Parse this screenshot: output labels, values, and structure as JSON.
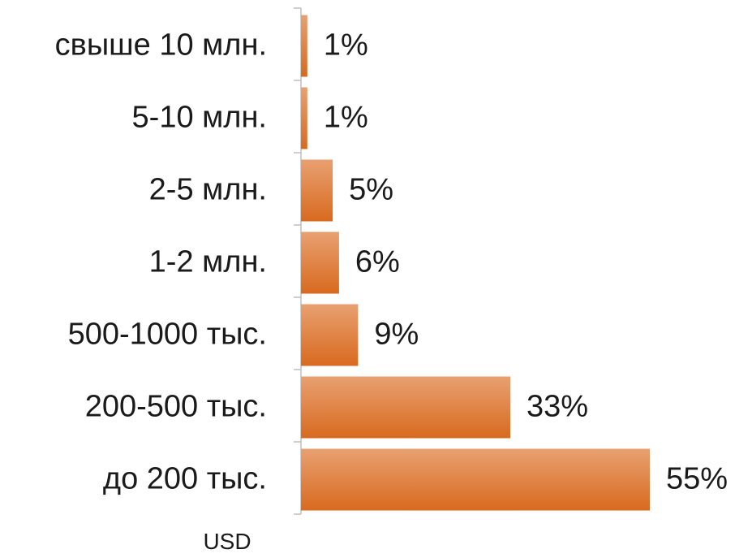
{
  "chart_data": {
    "type": "bar",
    "orientation": "horizontal",
    "categories": [
      "свыше 10 млн.",
      "5-10 млн.",
      "2-5 млн.",
      "1-2 млн.",
      "500-1000 тыс.",
      "200-500 тыс.",
      "до 200 тыс."
    ],
    "values": [
      1,
      1,
      5,
      6,
      9,
      33,
      55
    ],
    "value_labels": [
      "1%",
      "1%",
      "5%",
      "6%",
      "9%",
      "33%",
      "55%"
    ],
    "unit_label": "USD",
    "xlim": [
      0,
      55
    ],
    "grid": false,
    "legend": "none",
    "colors": {
      "bar_top": "#e8a071",
      "bar_bottom": "#d86a1f",
      "axis": "#bfbfbf",
      "text": "#1a1a1a"
    }
  }
}
